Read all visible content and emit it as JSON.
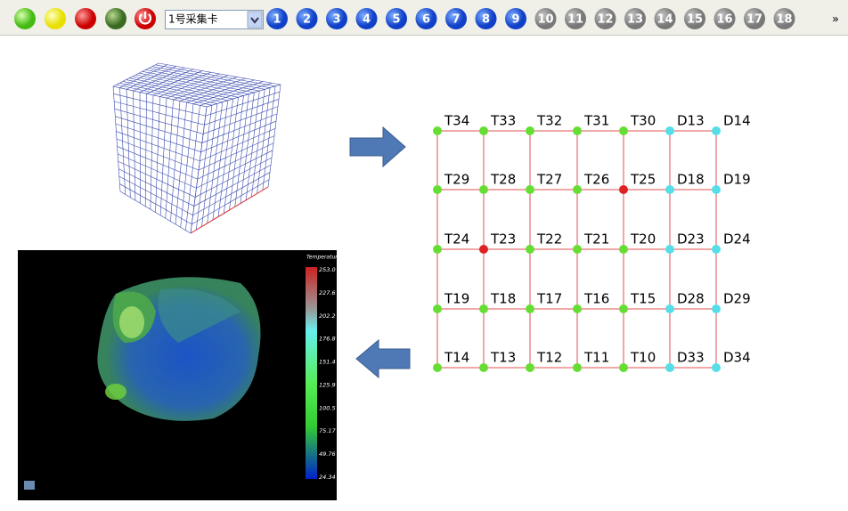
{
  "toolbar": {
    "device_select": "1号采集卡",
    "channels": [
      "1",
      "2",
      "3",
      "4",
      "5",
      "6",
      "7",
      "8",
      "9",
      "10",
      "11",
      "12",
      "13",
      "14",
      "15",
      "16",
      "17",
      "18"
    ],
    "overflow": "»"
  },
  "grid": {
    "rows": [
      [
        {
          "label": "T34",
          "color": "#66dd33"
        },
        {
          "label": "T33",
          "color": "#66dd33"
        },
        {
          "label": "T32",
          "color": "#66dd33"
        },
        {
          "label": "T31",
          "color": "#66dd33"
        },
        {
          "label": "T30",
          "color": "#66dd33"
        },
        {
          "label": "D13",
          "color": "#55dde8"
        },
        {
          "label": "D14",
          "color": "#55dde8"
        }
      ],
      [
        {
          "label": "T29",
          "color": "#66dd33"
        },
        {
          "label": "T28",
          "color": "#66dd33"
        },
        {
          "label": "T27",
          "color": "#66dd33"
        },
        {
          "label": "T26",
          "color": "#66dd33"
        },
        {
          "label": "T25",
          "color": "#dd2222"
        },
        {
          "label": "D18",
          "color": "#55dde8"
        },
        {
          "label": "D19",
          "color": "#55dde8"
        }
      ],
      [
        {
          "label": "T24",
          "color": "#66dd33"
        },
        {
          "label": "T23",
          "color": "#dd2222"
        },
        {
          "label": "T22",
          "color": "#66dd33"
        },
        {
          "label": "T21",
          "color": "#66dd33"
        },
        {
          "label": "T20",
          "color": "#66dd33"
        },
        {
          "label": "D23",
          "color": "#55dde8"
        },
        {
          "label": "D24",
          "color": "#55dde8"
        }
      ],
      [
        {
          "label": "T19",
          "color": "#66dd33"
        },
        {
          "label": "T18",
          "color": "#66dd33"
        },
        {
          "label": "T17",
          "color": "#66dd33"
        },
        {
          "label": "T16",
          "color": "#66dd33"
        },
        {
          "label": "T15",
          "color": "#66dd33"
        },
        {
          "label": "D28",
          "color": "#55dde8"
        },
        {
          "label": "D29",
          "color": "#55dde8"
        }
      ],
      [
        {
          "label": "T14",
          "color": "#66dd33"
        },
        {
          "label": "T13",
          "color": "#66dd33"
        },
        {
          "label": "T12",
          "color": "#66dd33"
        },
        {
          "label": "T11",
          "color": "#66dd33"
        },
        {
          "label": "T10",
          "color": "#66dd33"
        },
        {
          "label": "D33",
          "color": "#55dde8"
        },
        {
          "label": "D34",
          "color": "#55dde8"
        }
      ]
    ]
  },
  "render": {
    "legend_title": "Temperatur",
    "legend_labels": [
      "253.0",
      "227.6",
      "202.2",
      "176.8",
      "151.4",
      "125.9",
      "100.5",
      "75.17",
      "49.76",
      "24.34"
    ]
  }
}
